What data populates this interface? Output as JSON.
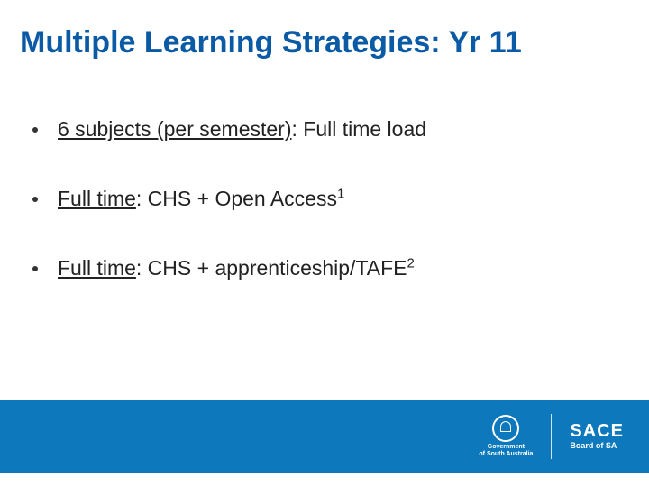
{
  "colors": {
    "title_color": "#0a5aa6",
    "footer_bg": "#0d78bc",
    "text_color": "#222222",
    "white": "#ffffff"
  },
  "title": "Multiple Learning Strategies: Yr 11",
  "bullets": [
    {
      "underlined": "6 subjects (per semester)",
      "rest": ": Full time load",
      "sup": ""
    },
    {
      "underlined": "Full time",
      "rest": ": CHS + Open Access",
      "sup": "1"
    },
    {
      "underlined": "Full time",
      "rest": ": CHS + apprenticeship/TAFE",
      "sup": "2"
    }
  ],
  "footer": {
    "gov_line1": "Government",
    "gov_line2": "of South Australia",
    "sace_main": "SACE",
    "sace_sub": "Board of SA"
  }
}
